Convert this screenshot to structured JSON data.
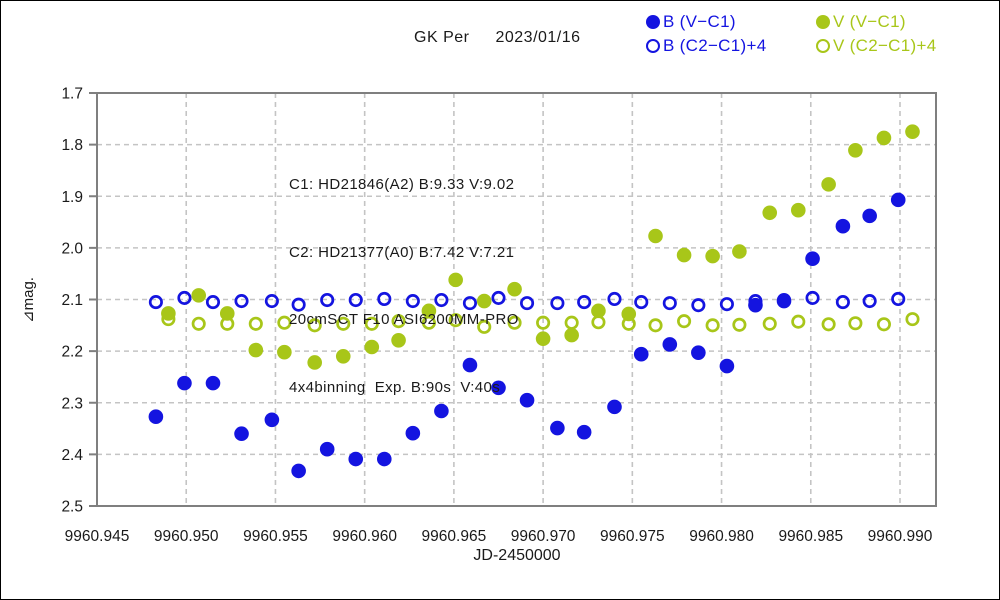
{
  "header": {
    "title": "GK Per",
    "date": "2023/01/16"
  },
  "colors": {
    "blue": "#1414e0",
    "green": "#a8c619",
    "grid": "#c4c4c4",
    "frame": "#7f7f7f",
    "text": "#1a1a1a"
  },
  "legend": {
    "items": [
      {
        "label": "B (V−C1)",
        "marker": "filled",
        "color": "blue"
      },
      {
        "label": "V (V−C1)",
        "marker": "filled",
        "color": "green"
      },
      {
        "label": "B (C2−C1)+4",
        "marker": "open",
        "color": "blue"
      },
      {
        "label": "V (C2−C1)+4",
        "marker": "open",
        "color": "green"
      }
    ]
  },
  "annotation": {
    "lines": [
      "C1: HD21846(A2) B:9.33 V:9.02",
      "C2: HD21377(A0) B:7.42 V:7.21",
      "20cmSCT F10 ASI6200MM-PRO",
      "4x4binning  Exp. B:90s  V:40s"
    ]
  },
  "chart_data": {
    "type": "scatter",
    "title": "GK Per 2023/01/16",
    "xlabel": "JD-2450000",
    "ylabel": "⊿mag.",
    "grid": "dashed",
    "legend_position": "top-right",
    "y_inverted": true,
    "xlim": [
      9960.945,
      9960.992
    ],
    "ylim": [
      1.7,
      2.5
    ],
    "x_ticks": [
      "9960.945",
      "9960.950",
      "9960.955",
      "9960.960",
      "9960.965",
      "9960.970",
      "9960.975",
      "9960.980",
      "9960.985",
      "9960.990"
    ],
    "y_ticks": [
      "1.7",
      "1.8",
      "1.9",
      "2.0",
      "2.1",
      "2.2",
      "2.3",
      "2.4",
      "2.5"
    ],
    "series": [
      {
        "name": "B (V-C1)",
        "marker": "filled",
        "color": "blue",
        "x": [
          9960.9483,
          9960.9499,
          9960.9515,
          9960.9531,
          9960.9548,
          9960.9563,
          9960.9579,
          9960.9595,
          9960.9611,
          9960.9627,
          9960.9643,
          9960.9659,
          9960.9675,
          9960.9691,
          9960.9708,
          9960.9723,
          9960.974,
          9960.9755,
          9960.9771,
          9960.9787,
          9960.9803,
          9960.9819,
          9960.9835,
          9960.9851,
          9960.9868,
          9960.9883,
          9960.9899
        ],
        "y": [
          2.327,
          2.262,
          2.262,
          2.36,
          2.333,
          2.432,
          2.39,
          2.409,
          2.409,
          2.359,
          2.316,
          2.227,
          2.271,
          2.295,
          2.349,
          2.357,
          2.308,
          2.206,
          2.187,
          2.203,
          2.229,
          2.111,
          2.103,
          2.021,
          1.958,
          1.938,
          1.907
        ]
      },
      {
        "name": "V (V-C1)",
        "marker": "filled",
        "color": "green",
        "x": [
          9960.949,
          9960.9507,
          9960.9523,
          9960.9539,
          9960.9555,
          9960.9572,
          9960.9588,
          9960.9604,
          9960.9619,
          9960.9636,
          9960.9651,
          9960.9667,
          9960.9684,
          9960.97,
          9960.9716,
          9960.9731,
          9960.9748,
          9960.9763,
          9960.9779,
          9960.9795,
          9960.981,
          9960.9827,
          9960.9843,
          9960.986,
          9960.9875,
          9960.9891,
          9960.9907
        ],
        "y": [
          2.127,
          2.092,
          2.127,
          2.198,
          2.202,
          2.222,
          2.21,
          2.192,
          2.179,
          2.122,
          2.062,
          2.103,
          2.08,
          2.176,
          2.169,
          2.122,
          2.128,
          1.977,
          2.014,
          2.016,
          2.007,
          1.932,
          1.927,
          1.877,
          1.811,
          1.787,
          1.775
        ]
      },
      {
        "name": "B (C2-C1)+4",
        "marker": "open",
        "color": "blue",
        "x": [
          9960.9483,
          9960.9499,
          9960.9515,
          9960.9531,
          9960.9548,
          9960.9563,
          9960.9579,
          9960.9595,
          9960.9611,
          9960.9627,
          9960.9643,
          9960.9659,
          9960.9675,
          9960.9691,
          9960.9708,
          9960.9723,
          9960.974,
          9960.9755,
          9960.9771,
          9960.9787,
          9960.9803,
          9960.9819,
          9960.9835,
          9960.9851,
          9960.9868,
          9960.9883,
          9960.9899
        ],
        "y": [
          2.105,
          2.097,
          2.105,
          2.103,
          2.103,
          2.11,
          2.101,
          2.101,
          2.099,
          2.103,
          2.101,
          2.107,
          2.097,
          2.107,
          2.107,
          2.105,
          2.099,
          2.105,
          2.107,
          2.111,
          2.109,
          2.103,
          2.101,
          2.097,
          2.105,
          2.103,
          2.099
        ]
      },
      {
        "name": "V (C2-C1)+4",
        "marker": "open",
        "color": "green",
        "x": [
          9960.949,
          9960.9507,
          9960.9523,
          9960.9539,
          9960.9555,
          9960.9572,
          9960.9588,
          9960.9604,
          9960.9619,
          9960.9636,
          9960.9651,
          9960.9667,
          9960.9684,
          9960.97,
          9960.9716,
          9960.9731,
          9960.9748,
          9960.9763,
          9960.9779,
          9960.9795,
          9960.981,
          9960.9827,
          9960.9843,
          9960.986,
          9960.9875,
          9960.9891,
          9960.9907
        ],
        "y": [
          2.138,
          2.147,
          2.147,
          2.147,
          2.145,
          2.15,
          2.147,
          2.147,
          2.142,
          2.145,
          2.14,
          2.153,
          2.145,
          2.145,
          2.145,
          2.144,
          2.147,
          2.15,
          2.142,
          2.15,
          2.149,
          2.147,
          2.143,
          2.148,
          2.146,
          2.148,
          2.138
        ]
      }
    ]
  }
}
